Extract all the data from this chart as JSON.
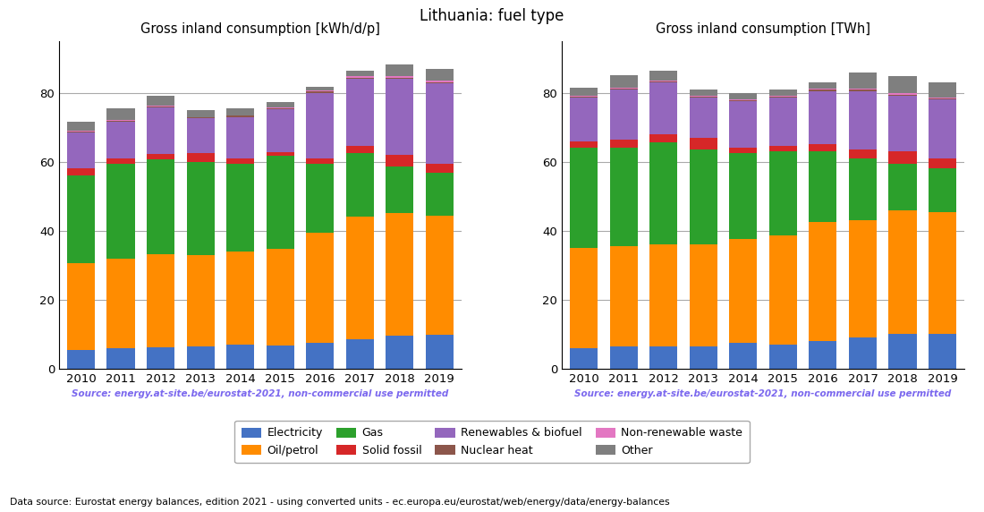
{
  "title": "Lithuania: fuel type",
  "years": [
    2010,
    2011,
    2012,
    2013,
    2014,
    2015,
    2016,
    2017,
    2018,
    2019
  ],
  "left_title": "Gross inland consumption [kWh/d/p]",
  "right_title": "Gross inland consumption [TWh]",
  "source_text": "Source: energy.at-site.be/eurostat-2021, non-commercial use permitted",
  "footer_text": "Data source: Eurostat energy balances, edition 2021 - using converted units - ec.europa.eu/eurostat/web/energy/data/energy-balances",
  "categories": [
    "Electricity",
    "Oil/petrol",
    "Gas",
    "Solid fossil",
    "Renewables & biofuel",
    "Nuclear heat",
    "Non-renewable waste",
    "Other"
  ],
  "colors": [
    "#4472C4",
    "#FF8C00",
    "#2CA02C",
    "#D62728",
    "#9467BD",
    "#8C564B",
    "#E377C2",
    "#7F7F7F"
  ],
  "left_data": {
    "Electricity": [
      5.5,
      6.0,
      6.2,
      6.5,
      7.0,
      6.8,
      7.5,
      8.5,
      9.5,
      9.8
    ],
    "Oil/petrol": [
      25.0,
      26.0,
      27.0,
      26.5,
      27.0,
      28.0,
      32.0,
      35.5,
      35.5,
      34.5
    ],
    "Gas": [
      25.5,
      27.5,
      27.5,
      27.0,
      25.5,
      27.0,
      20.0,
      18.5,
      13.5,
      12.5
    ],
    "Solid fossil": [
      2.0,
      1.5,
      1.5,
      2.5,
      1.5,
      1.0,
      1.5,
      2.0,
      3.5,
      2.5
    ],
    "Renewables & biofuel": [
      10.5,
      10.5,
      13.5,
      10.0,
      12.0,
      12.5,
      19.0,
      19.5,
      22.0,
      23.5
    ],
    "Nuclear heat": [
      0.3,
      0.3,
      0.3,
      0.3,
      0.3,
      0.3,
      0.3,
      0.3,
      0.3,
      0.3
    ],
    "Non-renewable waste": [
      0.2,
      0.2,
      0.2,
      0.2,
      0.2,
      0.2,
      0.3,
      0.5,
      0.5,
      0.3
    ],
    "Other": [
      2.5,
      3.5,
      3.0,
      2.0,
      2.0,
      1.5,
      1.0,
      1.5,
      3.5,
      3.5
    ]
  },
  "right_data": {
    "Electricity": [
      6.0,
      6.5,
      6.5,
      6.5,
      7.5,
      7.0,
      8.0,
      9.0,
      10.0,
      10.0
    ],
    "Oil/petrol": [
      29.0,
      29.0,
      29.5,
      29.5,
      30.0,
      31.5,
      34.5,
      34.0,
      36.0,
      35.5
    ],
    "Gas": [
      29.0,
      28.5,
      29.5,
      27.5,
      25.0,
      24.5,
      20.5,
      18.0,
      13.5,
      12.5
    ],
    "Solid fossil": [
      2.0,
      2.5,
      2.5,
      3.5,
      1.5,
      1.5,
      2.0,
      2.5,
      3.5,
      3.0
    ],
    "Renewables & biofuel": [
      12.5,
      14.5,
      15.0,
      11.5,
      13.5,
      14.0,
      15.5,
      17.0,
      16.0,
      17.0
    ],
    "Nuclear heat": [
      0.3,
      0.3,
      0.3,
      0.3,
      0.3,
      0.3,
      0.3,
      0.3,
      0.3,
      0.3
    ],
    "Non-renewable waste": [
      0.2,
      0.2,
      0.2,
      0.2,
      0.2,
      0.2,
      0.3,
      0.5,
      0.5,
      0.3
    ],
    "Other": [
      2.5,
      3.5,
      3.0,
      2.0,
      2.0,
      2.0,
      2.0,
      4.5,
      5.0,
      4.5
    ]
  },
  "ylim": [
    0,
    95
  ],
  "yticks": [
    0,
    20,
    40,
    60,
    80
  ],
  "source_color": "#7B68EE"
}
